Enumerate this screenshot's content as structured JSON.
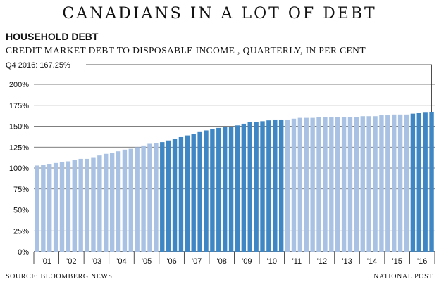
{
  "banner_title": "CANADIANS IN A LOT OF DEBT",
  "chart_data": {
    "type": "bar",
    "title": "HOUSEHOLD DEBT",
    "subtitle": "CREDIT MARKET DEBT TO DISPOSABLE INCOME , QUARTERLY, IN PER CENT",
    "annotation": "Q4 2016: 167.25%",
    "source": "SOURCE: BLOOMBERG NEWS",
    "credit": "NATIONAL POST",
    "ylim": [
      0,
      200
    ],
    "yticks": [
      0,
      25,
      50,
      75,
      100,
      125,
      150,
      175,
      200
    ],
    "ytick_labels": [
      "0%",
      "25%",
      "50%",
      "75%",
      "100%",
      "125%",
      "150%",
      "175%",
      "200%"
    ],
    "xtick_labels": [
      "'01",
      "'02",
      "'03",
      "'04",
      "'05",
      "'06",
      "'07",
      "'08",
      "'09",
      "'10",
      "'11",
      "'12",
      "'13",
      "'14",
      "'15",
      "'16"
    ],
    "grid": true,
    "colors": {
      "light": "#a9c2e4",
      "dark": "#3f86c4"
    },
    "categories": [
      "Q1 2001",
      "Q2 2001",
      "Q3 2001",
      "Q4 2001",
      "Q1 2002",
      "Q2 2002",
      "Q3 2002",
      "Q4 2002",
      "Q1 2003",
      "Q2 2003",
      "Q3 2003",
      "Q4 2003",
      "Q1 2004",
      "Q2 2004",
      "Q3 2004",
      "Q4 2004",
      "Q1 2005",
      "Q2 2005",
      "Q3 2005",
      "Q4 2005",
      "Q1 2006",
      "Q2 2006",
      "Q3 2006",
      "Q4 2006",
      "Q1 2007",
      "Q2 2007",
      "Q3 2007",
      "Q4 2007",
      "Q1 2008",
      "Q2 2008",
      "Q3 2008",
      "Q4 2008",
      "Q1 2009",
      "Q2 2009",
      "Q3 2009",
      "Q4 2009",
      "Q1 2010",
      "Q2 2010",
      "Q3 2010",
      "Q4 2010",
      "Q1 2011",
      "Q2 2011",
      "Q3 2011",
      "Q4 2011",
      "Q1 2012",
      "Q2 2012",
      "Q3 2012",
      "Q4 2012",
      "Q1 2013",
      "Q2 2013",
      "Q3 2013",
      "Q4 2013",
      "Q1 2014",
      "Q2 2014",
      "Q3 2014",
      "Q4 2014",
      "Q1 2015",
      "Q2 2015",
      "Q3 2015",
      "Q4 2015",
      "Q1 2016",
      "Q2 2016",
      "Q3 2016",
      "Q4 2016"
    ],
    "values": [
      103,
      104,
      105,
      106,
      107,
      108,
      110,
      111,
      111,
      113,
      115,
      117,
      118,
      120,
      122,
      123,
      125,
      127,
      129,
      130,
      131,
      133,
      135,
      137,
      139,
      141,
      143,
      145,
      147,
      148,
      149,
      149,
      151,
      153,
      155,
      155,
      156,
      157,
      158,
      158,
      158,
      159,
      160,
      160,
      160,
      161,
      161,
      161,
      161,
      161,
      161,
      161,
      162,
      162,
      162,
      163,
      163,
      164,
      164,
      164,
      165,
      166,
      167,
      167.25
    ],
    "highlight": [
      false,
      false,
      false,
      false,
      false,
      false,
      false,
      false,
      false,
      false,
      false,
      false,
      false,
      false,
      false,
      false,
      false,
      false,
      false,
      false,
      true,
      true,
      true,
      true,
      true,
      true,
      true,
      true,
      true,
      true,
      true,
      true,
      true,
      true,
      true,
      true,
      true,
      true,
      true,
      true,
      false,
      false,
      false,
      false,
      false,
      false,
      false,
      false,
      false,
      false,
      false,
      false,
      false,
      false,
      false,
      false,
      false,
      false,
      false,
      false,
      true,
      true,
      true,
      true
    ]
  }
}
